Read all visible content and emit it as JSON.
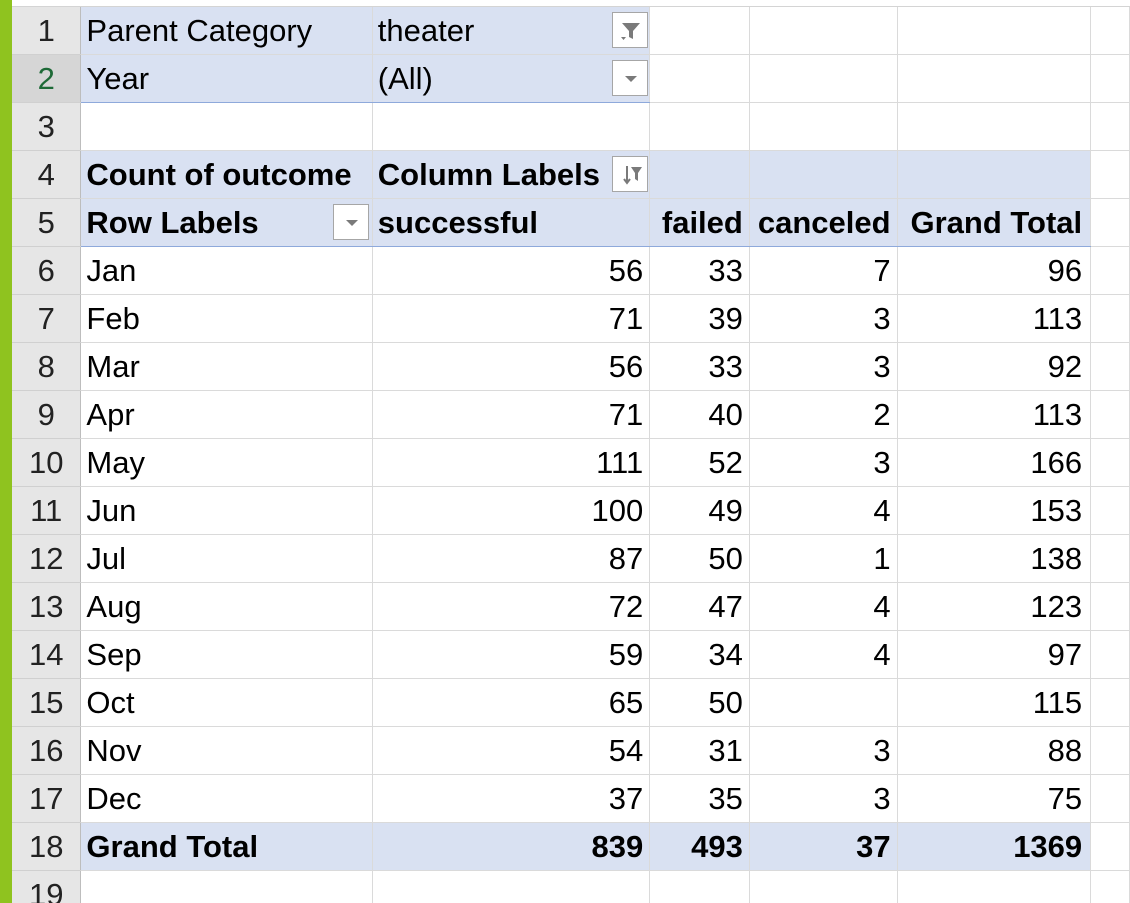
{
  "app": {
    "accent_color": "#8fc31f",
    "pivot_fill_color": "#d9e1f2",
    "selected_row_header_color": "#1e6a37"
  },
  "row_numbers": [
    "1",
    "2",
    "3",
    "4",
    "5",
    "6",
    "7",
    "8",
    "9",
    "10",
    "11",
    "12",
    "13",
    "14",
    "15",
    "16",
    "17",
    "18",
    "19"
  ],
  "filters": [
    {
      "label": "Parent Category",
      "value": "theater",
      "icon": "filter-applied-icon"
    },
    {
      "label": "Year",
      "value": "(All)",
      "icon": "dropdown-arrow-icon"
    }
  ],
  "pivot": {
    "values_label": "Count of outcome",
    "column_labels_header": "Column Labels",
    "column_labels_icon": "sort-filter-icon",
    "row_labels_header": "Row Labels",
    "row_labels_icon": "dropdown-arrow-icon",
    "columns": [
      "successful",
      "failed",
      "canceled",
      "Grand Total"
    ],
    "rows": [
      {
        "label": "Jan",
        "values": [
          "56",
          "33",
          "7",
          "96"
        ]
      },
      {
        "label": "Feb",
        "values": [
          "71",
          "39",
          "3",
          "113"
        ]
      },
      {
        "label": "Mar",
        "values": [
          "56",
          "33",
          "3",
          "92"
        ]
      },
      {
        "label": "Apr",
        "values": [
          "71",
          "40",
          "2",
          "113"
        ]
      },
      {
        "label": "May",
        "values": [
          "111",
          "52",
          "3",
          "166"
        ]
      },
      {
        "label": "Jun",
        "values": [
          "100",
          "49",
          "4",
          "153"
        ]
      },
      {
        "label": "Jul",
        "values": [
          "87",
          "50",
          "1",
          "138"
        ]
      },
      {
        "label": "Aug",
        "values": [
          "72",
          "47",
          "4",
          "123"
        ]
      },
      {
        "label": "Sep",
        "values": [
          "59",
          "34",
          "4",
          "97"
        ]
      },
      {
        "label": "Oct",
        "values": [
          "65",
          "50",
          "",
          "115"
        ]
      },
      {
        "label": "Nov",
        "values": [
          "54",
          "31",
          "3",
          "88"
        ]
      },
      {
        "label": "Dec",
        "values": [
          "37",
          "35",
          "3",
          "75"
        ]
      }
    ],
    "grand_total": {
      "label": "Grand Total",
      "values": [
        "839",
        "493",
        "37",
        "1369"
      ]
    }
  }
}
